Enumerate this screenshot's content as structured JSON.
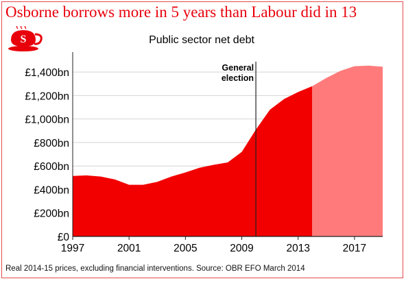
{
  "headline": "Osborne borrows more in 5 years than Labour did in 13",
  "logo_letter": "S",
  "logo_icon": "teacup-logo-icon",
  "source_note": "Real 2014-15 prices, excluding financial interventions. Source: OBR EFO March 2014",
  "colors": {
    "headline": "#e8000b",
    "actual_fill": "#f20000",
    "forecast_fill": "#ff7b7b",
    "grid": "#d4d4d4",
    "axis": "#222222",
    "election_line": "#222222"
  },
  "chart_data": {
    "type": "area",
    "title": "Public sector net debt",
    "xlabel": "",
    "ylabel": "",
    "x_range": [
      1997,
      2019
    ],
    "ylim": [
      0,
      1500
    ],
    "y_ticks": [
      {
        "value": 0,
        "label": "£0"
      },
      {
        "value": 200,
        "label": "£200bn"
      },
      {
        "value": 400,
        "label": "£400bn"
      },
      {
        "value": 600,
        "label": "£600bn"
      },
      {
        "value": 800,
        "label": "£800bn"
      },
      {
        "value": 1000,
        "label": "£1,000bn"
      },
      {
        "value": 1200,
        "label": "£1,200bn"
      },
      {
        "value": 1400,
        "label": "£1,400bn"
      }
    ],
    "x_ticks": [
      {
        "value": 1997,
        "label": "1997"
      },
      {
        "value": 2001,
        "label": "2001"
      },
      {
        "value": 2005,
        "label": "2005"
      },
      {
        "value": 2009,
        "label": "2009"
      },
      {
        "value": 2013,
        "label": "2013"
      },
      {
        "value": 2017,
        "label": "2017"
      }
    ],
    "grid": true,
    "series": [
      {
        "role": "actual",
        "x": [
          1997,
          1998,
          1999,
          2000,
          2001,
          2002,
          2003,
          2004,
          2005,
          2006,
          2007,
          2008,
          2009,
          2010,
          2011,
          2012,
          2013,
          2014
        ],
        "values": [
          515,
          520,
          510,
          485,
          440,
          440,
          465,
          510,
          545,
          585,
          610,
          630,
          720,
          910,
          1080,
          1170,
          1230,
          1280
        ]
      },
      {
        "role": "forecast",
        "x": [
          2014,
          2015,
          2016,
          2017,
          2018,
          2019
        ],
        "values": [
          1280,
          1350,
          1410,
          1450,
          1455,
          1445
        ]
      }
    ],
    "annotations": [
      {
        "type": "vline",
        "x": 2010,
        "label_lines": [
          "General",
          "election"
        ]
      }
    ]
  }
}
